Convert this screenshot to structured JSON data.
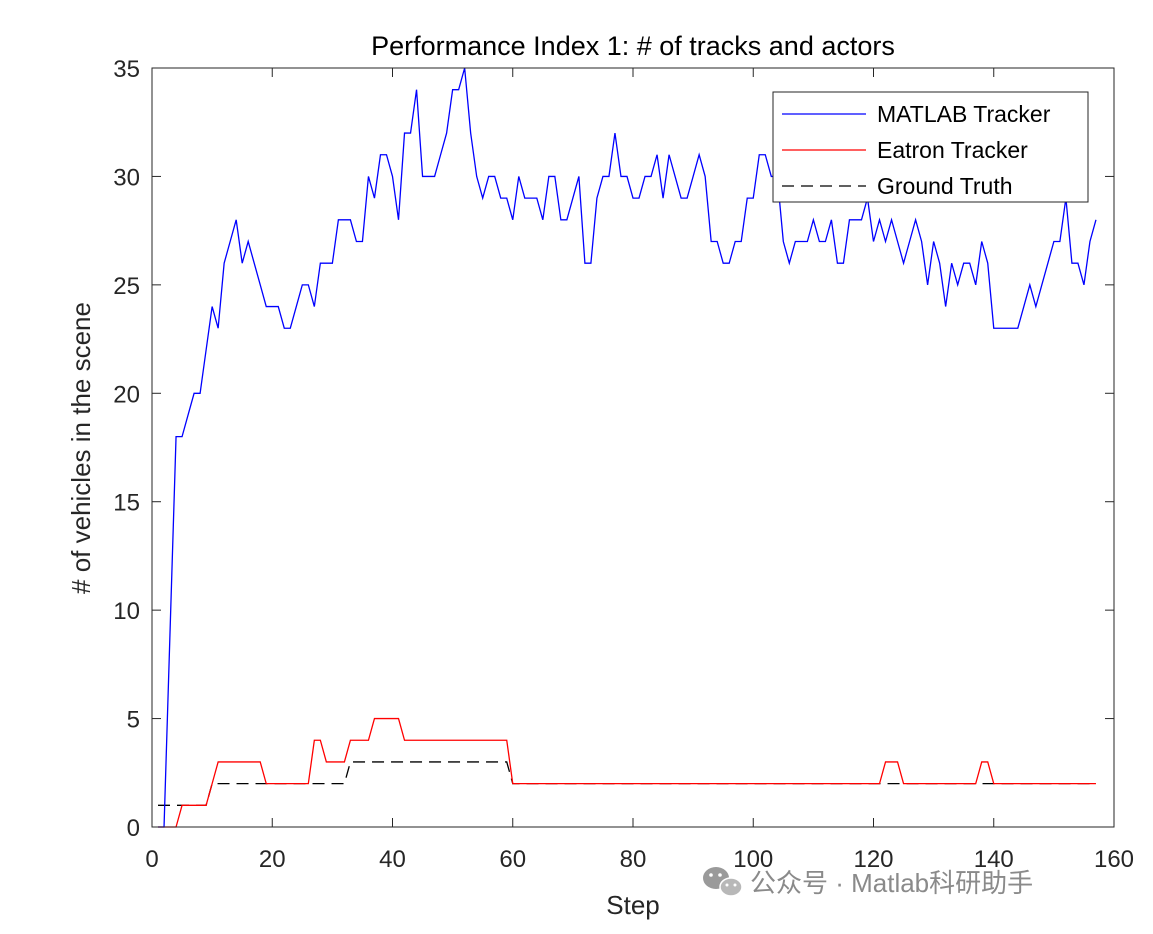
{
  "chart_data": {
    "type": "line",
    "title": "Performance Index 1: # of tracks and actors",
    "xlabel": "Step",
    "ylabel": "# of vehicles in the scene",
    "xlim": [
      0,
      160
    ],
    "ylim": [
      0,
      35
    ],
    "xticks": [
      0,
      20,
      40,
      60,
      80,
      100,
      120,
      140,
      160
    ],
    "yticks": [
      0,
      5,
      10,
      15,
      20,
      25,
      30,
      35
    ],
    "grid": false,
    "legend_position": "top-right",
    "series": [
      {
        "name": "MATLAB Tracker",
        "color": "#0000ff",
        "style": "solid",
        "x": [
          1,
          2,
          3,
          4,
          5,
          6,
          7,
          8,
          9,
          10,
          11,
          12,
          13,
          14,
          15,
          16,
          17,
          18,
          19,
          20,
          21,
          22,
          23,
          24,
          25,
          26,
          27,
          28,
          29,
          30,
          31,
          32,
          33,
          34,
          35,
          36,
          37,
          38,
          39,
          40,
          41,
          42,
          43,
          44,
          45,
          46,
          47,
          48,
          49,
          50,
          51,
          52,
          53,
          54,
          55,
          56,
          57,
          58,
          59,
          60,
          61,
          62,
          63,
          64,
          65,
          66,
          67,
          68,
          69,
          70,
          71,
          72,
          73,
          74,
          75,
          76,
          77,
          78,
          79,
          80,
          81,
          82,
          83,
          84,
          85,
          86,
          87,
          88,
          89,
          90,
          91,
          92,
          93,
          94,
          95,
          96,
          97,
          98,
          99,
          100,
          101,
          102,
          103,
          104,
          105,
          106,
          107,
          108,
          109,
          110,
          111,
          112,
          113,
          114,
          115,
          116,
          117,
          118,
          119,
          120,
          121,
          122,
          123,
          124,
          125,
          126,
          127,
          128,
          129,
          130,
          131,
          132,
          133,
          134,
          135,
          136,
          137,
          138,
          139,
          140,
          141,
          142,
          143,
          144,
          145,
          146,
          147,
          148,
          149,
          150,
          151,
          152,
          153,
          154,
          155,
          156,
          157
        ],
        "y": [
          0,
          0,
          9,
          18,
          18,
          19,
          20,
          20,
          22,
          24,
          23,
          26,
          27,
          28,
          26,
          27,
          26,
          25,
          24,
          24,
          24,
          23,
          23,
          24,
          25,
          25,
          24,
          26,
          26,
          26,
          28,
          28,
          28,
          27,
          27,
          30,
          29,
          31,
          31,
          30,
          28,
          32,
          32,
          34,
          30,
          30,
          30,
          31,
          32,
          34,
          34,
          35,
          32,
          30,
          29,
          30,
          30,
          29,
          29,
          28,
          30,
          29,
          29,
          29,
          28,
          30,
          30,
          28,
          28,
          29,
          30,
          26,
          26,
          29,
          30,
          30,
          32,
          30,
          30,
          29,
          29,
          30,
          30,
          31,
          29,
          31,
          30,
          29,
          29,
          30,
          31,
          30,
          27,
          27,
          26,
          26,
          27,
          27,
          29,
          29,
          31,
          31,
          30,
          30,
          27,
          26,
          27,
          27,
          27,
          28,
          27,
          27,
          28,
          26,
          26,
          28,
          28,
          28,
          29,
          27,
          28,
          27,
          28,
          27,
          26,
          27,
          28,
          27,
          25,
          27,
          26,
          24,
          26,
          25,
          26,
          26,
          25,
          27,
          26,
          23,
          23,
          23,
          23,
          23,
          24,
          25,
          24,
          25,
          26,
          27,
          27,
          29,
          26,
          26,
          25,
          27,
          28
        ]
      },
      {
        "name": "Eatron Tracker",
        "color": "#ff0000",
        "style": "solid",
        "x": [
          1,
          2,
          3,
          4,
          5,
          6,
          7,
          8,
          9,
          10,
          11,
          12,
          13,
          14,
          15,
          16,
          17,
          18,
          19,
          20,
          21,
          22,
          23,
          24,
          25,
          26,
          27,
          28,
          29,
          30,
          31,
          32,
          33,
          34,
          35,
          36,
          37,
          38,
          39,
          40,
          41,
          42,
          43,
          44,
          45,
          46,
          47,
          48,
          49,
          50,
          51,
          52,
          53,
          54,
          55,
          56,
          57,
          58,
          59,
          60,
          61,
          62,
          63,
          64,
          65,
          66,
          67,
          68,
          69,
          70,
          71,
          72,
          73,
          74,
          75,
          76,
          77,
          78,
          79,
          80,
          81,
          82,
          83,
          84,
          85,
          86,
          87,
          88,
          89,
          90,
          91,
          92,
          93,
          94,
          95,
          96,
          97,
          98,
          99,
          100,
          101,
          102,
          103,
          104,
          105,
          106,
          107,
          108,
          109,
          110,
          111,
          112,
          113,
          114,
          115,
          116,
          117,
          118,
          119,
          120,
          121,
          122,
          123,
          124,
          125,
          126,
          127,
          128,
          129,
          130,
          131,
          132,
          133,
          134,
          135,
          136,
          137,
          138,
          139,
          140,
          141,
          142,
          143,
          144,
          145,
          146,
          147,
          148,
          149,
          150,
          151,
          152,
          153,
          154,
          155,
          156,
          157
        ],
        "y": [
          0,
          0,
          0,
          0,
          1,
          1,
          1,
          1,
          1,
          2,
          3,
          3,
          3,
          3,
          3,
          3,
          3,
          3,
          2,
          2,
          2,
          2,
          2,
          2,
          2,
          2,
          4,
          4,
          3,
          3,
          3,
          3,
          4,
          4,
          4,
          4,
          5,
          5,
          5,
          5,
          5,
          4,
          4,
          4,
          4,
          4,
          4,
          4,
          4,
          4,
          4,
          4,
          4,
          4,
          4,
          4,
          4,
          4,
          4,
          2,
          2,
          2,
          2,
          2,
          2,
          2,
          2,
          2,
          2,
          2,
          2,
          2,
          2,
          2,
          2,
          2,
          2,
          2,
          2,
          2,
          2,
          2,
          2,
          2,
          2,
          2,
          2,
          2,
          2,
          2,
          2,
          2,
          2,
          2,
          2,
          2,
          2,
          2,
          2,
          2,
          2,
          2,
          2,
          2,
          2,
          2,
          2,
          2,
          2,
          2,
          2,
          2,
          2,
          2,
          2,
          2,
          2,
          2,
          2,
          2,
          2,
          3,
          3,
          3,
          2,
          2,
          2,
          2,
          2,
          2,
          2,
          2,
          2,
          2,
          2,
          2,
          2,
          3,
          3,
          2,
          2,
          2,
          2,
          2,
          2,
          2,
          2,
          2,
          2,
          2,
          2,
          2,
          2,
          2,
          2,
          2,
          2
        ]
      },
      {
        "name": "Ground Truth",
        "color": "#000000",
        "style": "dashed",
        "x": [
          1,
          2,
          3,
          4,
          5,
          6,
          7,
          8,
          9,
          10,
          11,
          12,
          13,
          14,
          15,
          16,
          17,
          18,
          19,
          20,
          21,
          22,
          23,
          24,
          25,
          26,
          27,
          28,
          29,
          30,
          31,
          32,
          33,
          34,
          35,
          36,
          37,
          38,
          39,
          40,
          41,
          42,
          43,
          44,
          45,
          46,
          47,
          48,
          49,
          50,
          51,
          52,
          53,
          54,
          55,
          56,
          57,
          58,
          59,
          60,
          61,
          62,
          63,
          64,
          65,
          66,
          67,
          68,
          69,
          70,
          71,
          72,
          73,
          74,
          75,
          76,
          77,
          78,
          79,
          80,
          81,
          82,
          83,
          84,
          85,
          86,
          87,
          88,
          89,
          90,
          91,
          92,
          93,
          94,
          95,
          96,
          97,
          98,
          99,
          100,
          101,
          102,
          103,
          104,
          105,
          106,
          107,
          108,
          109,
          110,
          111,
          112,
          113,
          114,
          115,
          116,
          117,
          118,
          119,
          120,
          121,
          122,
          123,
          124,
          125,
          126,
          127,
          128,
          129,
          130,
          131,
          132,
          133,
          134,
          135,
          136,
          137,
          138,
          139,
          140,
          141,
          142,
          143,
          144,
          145,
          146,
          147,
          148,
          149,
          150,
          151,
          152,
          153,
          154,
          155,
          156,
          157
        ],
        "y": [
          1,
          1,
          1,
          1,
          1,
          1,
          1,
          1,
          1,
          2,
          2,
          2,
          2,
          2,
          2,
          2,
          2,
          2,
          2,
          2,
          2,
          2,
          2,
          2,
          2,
          2,
          2,
          2,
          2,
          2,
          2,
          2,
          3,
          3,
          3,
          3,
          3,
          3,
          3,
          3,
          3,
          3,
          3,
          3,
          3,
          3,
          3,
          3,
          3,
          3,
          3,
          3,
          3,
          3,
          3,
          3,
          3,
          3,
          3,
          2,
          2,
          2,
          2,
          2,
          2,
          2,
          2,
          2,
          2,
          2,
          2,
          2,
          2,
          2,
          2,
          2,
          2,
          2,
          2,
          2,
          2,
          2,
          2,
          2,
          2,
          2,
          2,
          2,
          2,
          2,
          2,
          2,
          2,
          2,
          2,
          2,
          2,
          2,
          2,
          2,
          2,
          2,
          2,
          2,
          2,
          2,
          2,
          2,
          2,
          2,
          2,
          2,
          2,
          2,
          2,
          2,
          2,
          2,
          2,
          2,
          2,
          2,
          2,
          2,
          2,
          2,
          2,
          2,
          2,
          2,
          2,
          2,
          2,
          2,
          2,
          2,
          2,
          2,
          2,
          2,
          2,
          2,
          2,
          2,
          2,
          2,
          2,
          2,
          2,
          2,
          2,
          2,
          2,
          2,
          2,
          2,
          2
        ]
      }
    ]
  },
  "watermark": {
    "text": "公众号 · Matlab科研助手",
    "icon": "wechat-icon"
  }
}
